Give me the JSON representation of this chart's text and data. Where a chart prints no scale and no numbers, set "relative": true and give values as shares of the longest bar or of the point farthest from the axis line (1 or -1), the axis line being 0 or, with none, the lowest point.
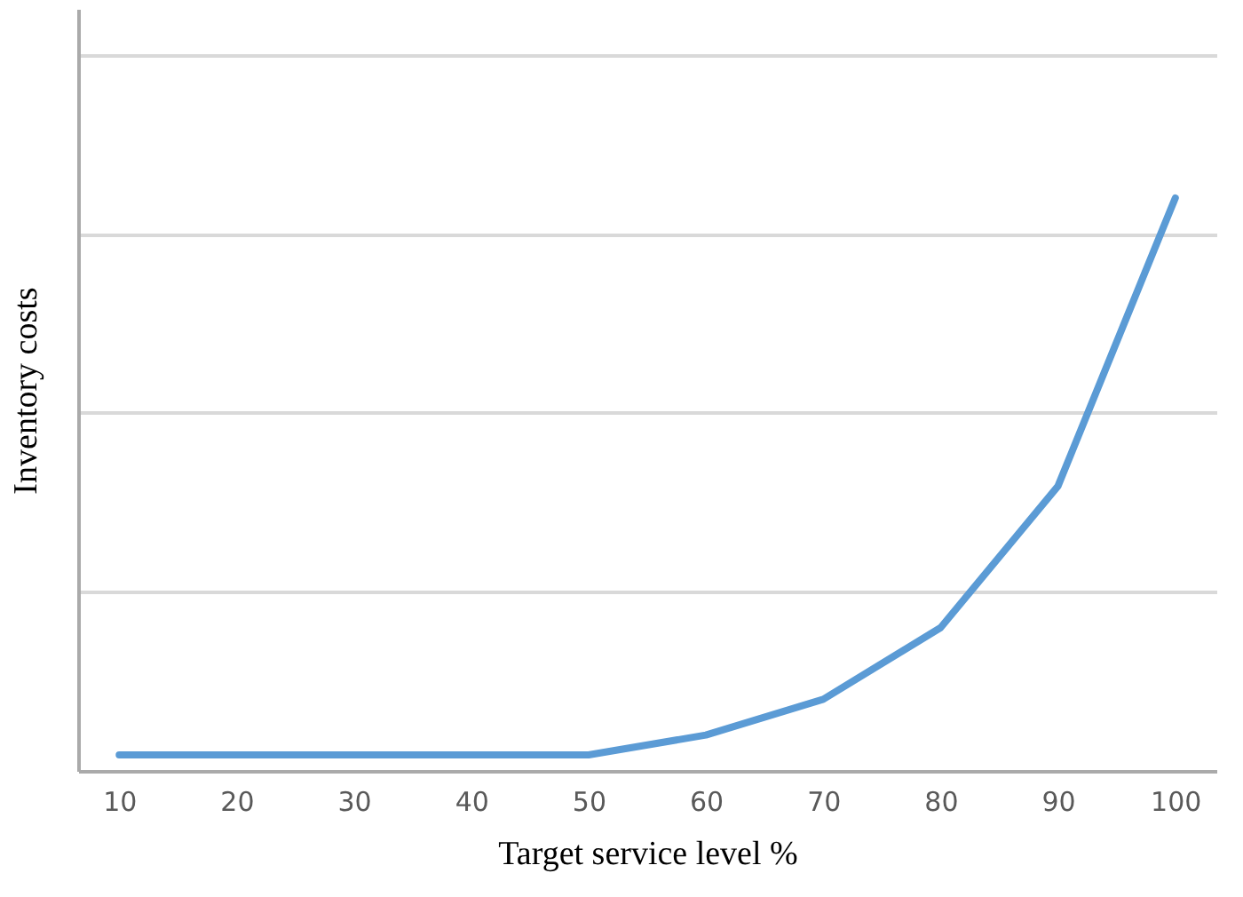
{
  "chart_data": {
    "type": "line",
    "xlabel": "Target service level %",
    "ylabel": "Inventory costs",
    "categories": [
      "10",
      "20",
      "30",
      "40",
      "50",
      "60",
      "70",
      "80",
      "90",
      "100"
    ],
    "series": [
      {
        "color": "#5b9bd5",
        "values": [
          0.028,
          0.028,
          0.028,
          0.028,
          0.028,
          0.0625,
          0.125,
          0.25,
          0.497,
          1
        ]
      }
    ],
    "relative": true,
    "grid": "y",
    "legend": false,
    "marker": "none",
    "line_style": "solid"
  }
}
